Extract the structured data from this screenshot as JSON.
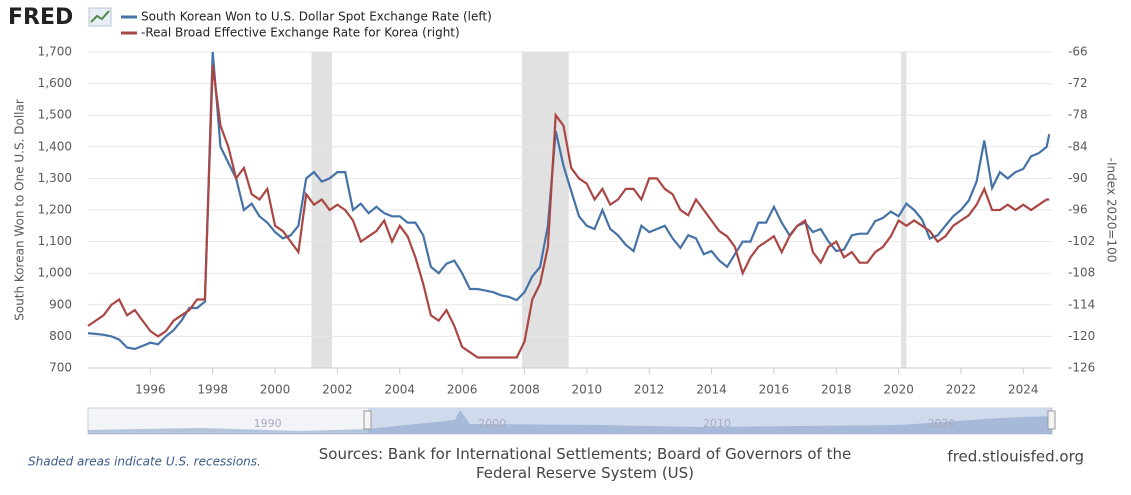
{
  "logo": "FRED",
  "chart_data": {
    "type": "line",
    "x": [
      1994.0,
      1994.25,
      1994.5,
      1994.75,
      1995.0,
      1995.25,
      1995.5,
      1995.75,
      1996.0,
      1996.25,
      1996.5,
      1996.75,
      1997.0,
      1997.25,
      1997.5,
      1997.75,
      1998.0,
      1998.25,
      1998.5,
      1998.75,
      1999.0,
      1999.25,
      1999.5,
      1999.75,
      2000.0,
      2000.25,
      2000.5,
      2000.75,
      2001.0,
      2001.25,
      2001.5,
      2001.75,
      2002.0,
      2002.25,
      2002.5,
      2002.75,
      2003.0,
      2003.25,
      2003.5,
      2003.75,
      2004.0,
      2004.25,
      2004.5,
      2004.75,
      2005.0,
      2005.25,
      2005.5,
      2005.75,
      2006.0,
      2006.25,
      2006.5,
      2006.75,
      2007.0,
      2007.25,
      2007.5,
      2007.75,
      2008.0,
      2008.25,
      2008.5,
      2008.75,
      2009.0,
      2009.25,
      2009.5,
      2009.75,
      2010.0,
      2010.25,
      2010.5,
      2010.75,
      2011.0,
      2011.25,
      2011.5,
      2011.75,
      2012.0,
      2012.25,
      2012.5,
      2012.75,
      2013.0,
      2013.25,
      2013.5,
      2013.75,
      2014.0,
      2014.25,
      2014.5,
      2014.75,
      2015.0,
      2015.25,
      2015.5,
      2015.75,
      2016.0,
      2016.25,
      2016.5,
      2016.75,
      2017.0,
      2017.25,
      2017.5,
      2017.75,
      2018.0,
      2018.25,
      2018.5,
      2018.75,
      2019.0,
      2019.25,
      2019.5,
      2019.75,
      2020.0,
      2020.25,
      2020.5,
      2020.75,
      2021.0,
      2021.25,
      2021.5,
      2021.75,
      2022.0,
      2022.25,
      2022.5,
      2022.75,
      2023.0,
      2023.25,
      2023.5,
      2023.75,
      2024.0,
      2024.25,
      2024.5,
      2024.75,
      2024.83
    ],
    "series": [
      {
        "name": "South Korean Won to U.S. Dollar Spot Exchange Rate (left)",
        "color": "#4572a7",
        "axis": "y",
        "values": [
          810,
          808,
          805,
          800,
          790,
          765,
          760,
          770,
          780,
          775,
          800,
          820,
          850,
          890,
          890,
          910,
          1700,
          1400,
          1350,
          1300,
          1200,
          1220,
          1180,
          1160,
          1130,
          1110,
          1120,
          1150,
          1300,
          1320,
          1290,
          1300,
          1320,
          1320,
          1200,
          1220,
          1190,
          1210,
          1190,
          1180,
          1180,
          1160,
          1160,
          1120,
          1020,
          1000,
          1030,
          1040,
          1000,
          950,
          950,
          945,
          940,
          930,
          925,
          915,
          940,
          990,
          1020,
          1150,
          1450,
          1340,
          1260,
          1180,
          1150,
          1140,
          1200,
          1140,
          1120,
          1090,
          1070,
          1150,
          1130,
          1140,
          1150,
          1110,
          1080,
          1120,
          1110,
          1060,
          1070,
          1040,
          1020,
          1060,
          1100,
          1100,
          1160,
          1160,
          1210,
          1160,
          1120,
          1150,
          1160,
          1130,
          1140,
          1100,
          1070,
          1075,
          1120,
          1125,
          1125,
          1165,
          1175,
          1195,
          1180,
          1220,
          1200,
          1170,
          1110,
          1120,
          1150,
          1180,
          1200,
          1230,
          1290,
          1420,
          1270,
          1320,
          1300,
          1320,
          1330,
          1370,
          1380,
          1400,
          1440
        ]
      },
      {
        "name": "-Real Broad Effective Exchange Rate for Korea (right)",
        "color": "#aa4643",
        "axis": "y2",
        "values": [
          -118,
          -117,
          -116,
          -114,
          -113,
          -116,
          -115,
          -117,
          -119,
          -120,
          -119,
          -117,
          -116,
          -115,
          -113,
          -113,
          -68.5,
          -80,
          -84,
          -90,
          -88,
          -93,
          -94,
          -92,
          -99,
          -100,
          -102,
          -104,
          -93,
          -95,
          -94,
          -96,
          -95,
          -96,
          -98,
          -102,
          -101,
          -100,
          -98,
          -102,
          -99,
          -101,
          -105,
          -110,
          -116,
          -117,
          -115,
          -118,
          -122,
          -123,
          -124,
          -124,
          -124,
          -124,
          -124,
          -124,
          -121,
          -113,
          -110,
          -103,
          -78,
          -80,
          -88,
          -90,
          -91,
          -94,
          -92,
          -95,
          -94,
          -92,
          -92,
          -94,
          -90,
          -90,
          -92,
          -93,
          -96,
          -97,
          -94,
          -96,
          -98,
          -100,
          -101,
          -103,
          -108,
          -105,
          -103,
          -102,
          -101,
          -104,
          -101,
          -99,
          -98,
          -104,
          -106,
          -103,
          -102,
          -105,
          -104,
          -106,
          -106,
          -104,
          -103,
          -101,
          -98,
          -99,
          -98,
          -99,
          -100,
          -102,
          -101,
          -99,
          -98,
          -97,
          -95,
          -92,
          -96,
          -96,
          -95,
          -96,
          -95,
          -96,
          -95,
          -94,
          -94
        ]
      }
    ],
    "xlim": [
      1994.0,
      2024.92
    ],
    "xticks": [
      1996,
      1998,
      2000,
      2002,
      2004,
      2006,
      2008,
      2010,
      2012,
      2014,
      2016,
      2018,
      2020,
      2022,
      2024
    ],
    "ylim": [
      700,
      1700
    ],
    "yticks": [
      700,
      800,
      900,
      {
        "value": 1000,
        "label": "1,000"
      },
      {
        "value": 1100,
        "label": "1,100"
      },
      {
        "value": 1200,
        "label": "1,200"
      },
      {
        "value": 1300,
        "label": "1,300"
      },
      {
        "value": 1400,
        "label": "1,400"
      },
      {
        "value": 1500,
        "label": "1,500"
      },
      {
        "value": 1600,
        "label": "1,600"
      },
      {
        "value": 1700,
        "label": "1,700"
      }
    ],
    "y2lim": [
      -126,
      -66
    ],
    "y2ticks": [
      -126,
      -120,
      -114,
      -108,
      -102,
      -96,
      -90,
      -84,
      -78,
      -72,
      -66
    ],
    "ylabel": "South Korean Won to One U.S. Dollar",
    "y2label": "-Index 2020=100",
    "recessions": [
      [
        2001.17,
        2001.83
      ],
      [
        2007.92,
        2009.42
      ],
      [
        2020.08,
        2020.25
      ]
    ],
    "recession_color": "#e1e1e1",
    "grid": true
  },
  "navigator": {
    "labels": [
      "1990",
      "2000",
      "2010",
      "2020"
    ]
  },
  "footer": {
    "note": "Shaded areas indicate U.S. recessions.",
    "sources": "Sources: Bank for International Settlements; Board of Governors of the Federal Reserve System (US)",
    "url": "fred.stlouisfed.org"
  }
}
